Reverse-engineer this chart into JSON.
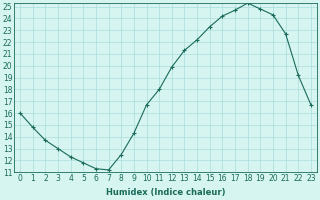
{
  "xlabel": "Humidex (Indice chaleur)",
  "ylabel": "",
  "x": [
    0,
    1,
    2,
    3,
    4,
    5,
    6,
    7,
    8,
    9,
    10,
    11,
    12,
    13,
    14,
    15,
    16,
    17,
    18,
    19,
    20,
    21,
    22,
    23
  ],
  "y": [
    16,
    14.8,
    13.7,
    13.0,
    12.3,
    11.8,
    11.3,
    11.2,
    12.5,
    14.3,
    16.7,
    18.0,
    19.9,
    21.3,
    22.2,
    23.3,
    24.2,
    24.7,
    25.3,
    24.8,
    24.3,
    22.7,
    19.2,
    16.7
  ],
  "line_color": "#1a6b5a",
  "marker": "+",
  "marker_size": 3,
  "bg_color": "#d6f5f0",
  "grid_color": "#aadddd",
  "ylim": [
    11,
    25
  ],
  "xlim": [
    -0.5,
    23.5
  ],
  "yticks": [
    11,
    12,
    13,
    14,
    15,
    16,
    17,
    18,
    19,
    20,
    21,
    22,
    23,
    24,
    25
  ],
  "xticks": [
    0,
    1,
    2,
    3,
    4,
    5,
    6,
    7,
    8,
    9,
    10,
    11,
    12,
    13,
    14,
    15,
    16,
    17,
    18,
    19,
    20,
    21,
    22,
    23
  ],
  "label_fontsize": 6,
  "tick_fontsize": 5.5,
  "linewidth": 0.8,
  "markeredgewidth": 0.8
}
